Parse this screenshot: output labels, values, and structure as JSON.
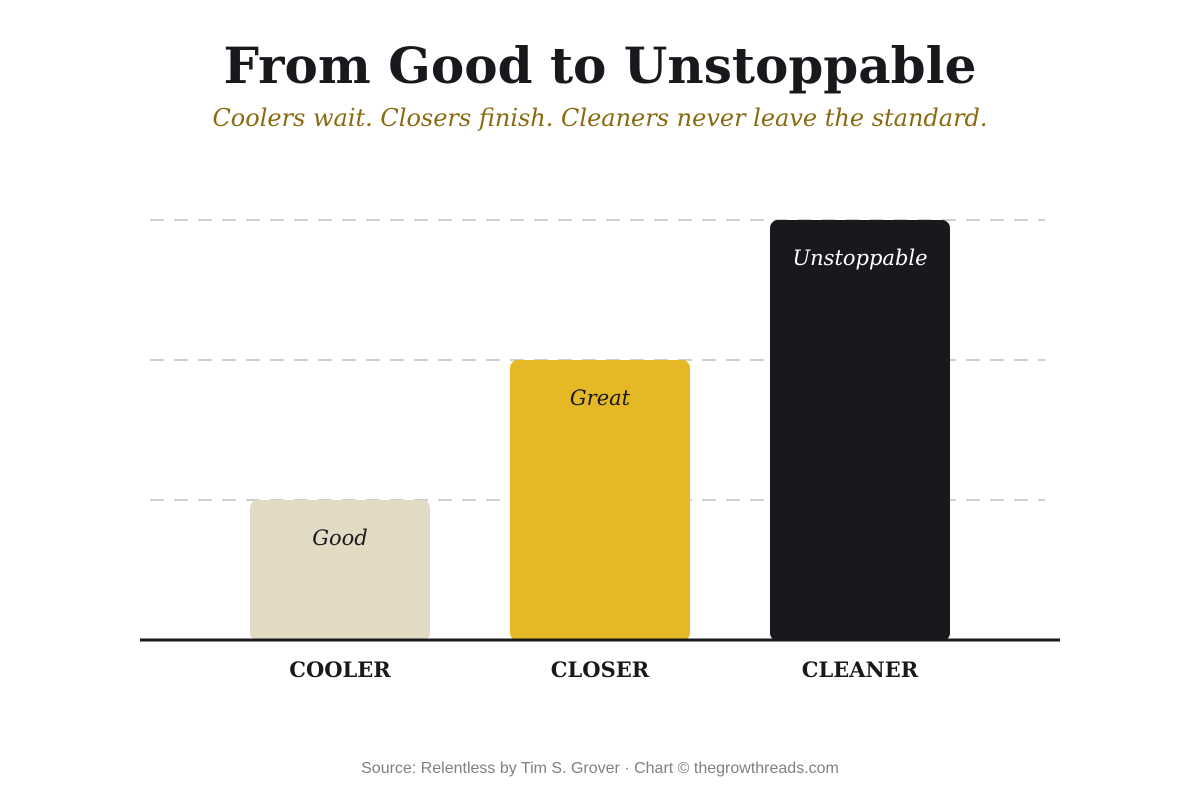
{
  "chart_data": {
    "type": "bar",
    "title": "From Good to Unstoppable",
    "subtitle": "Coolers wait. Closers finish. Cleaners never leave the standard.",
    "categories": [
      "COOLER",
      "CLOSER",
      "CLEANER"
    ],
    "values": [
      1,
      2,
      3
    ],
    "bar_labels": [
      "Good",
      "Great",
      "Unstoppable"
    ],
    "colors": [
      "#e3dac3",
      "#e5b925",
      "#18191d"
    ],
    "label_colors": [
      "#18191d",
      "#18191d",
      "#ffffff"
    ],
    "ylim": [
      0,
      3.3
    ],
    "grid": true,
    "grid_style": "dashed"
  },
  "footer": {
    "source": "Source: Relentless by Tim S. Grover · Chart © thegrowthreads.com"
  }
}
